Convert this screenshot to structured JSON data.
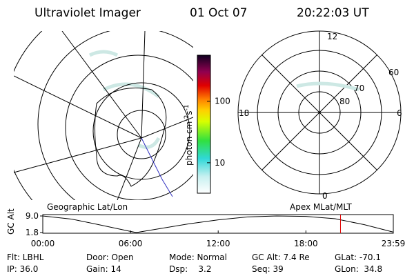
{
  "header": {
    "title": "Ultraviolet Imager",
    "date": "01 Oct 07",
    "time": "20:22:03 UT"
  },
  "colorbar": {
    "label_base": "photon cm",
    "exp1": "-2",
    "unit2": "s",
    "exp2": "-1",
    "log": true,
    "lim": [
      3.2,
      560
    ],
    "ticks": [
      10,
      100
    ]
  },
  "polar": {
    "mlt_labels": [
      "12",
      "18",
      "6",
      "0"
    ],
    "lat_labels": [
      "60",
      "70",
      "80"
    ]
  },
  "map_labels": {
    "left": "Geographic Lat/Lon",
    "right": "Apex MLat/MLT"
  },
  "altitude_plot": {
    "ylabel": "GC Alt",
    "yticks": [
      {
        "value": 9,
        "label": "9.0"
      },
      1.8
    ],
    "ylim": [
      1.8,
      9
    ],
    "xlim": [
      0,
      23.98
    ],
    "xticks": [
      {
        "value": 0,
        "label": "00:00"
      },
      {
        "value": 6,
        "label": "06:00"
      },
      {
        "value": 12,
        "label": "12:00"
      },
      {
        "value": 18,
        "label": "18:00"
      },
      {
        "value": 23.98,
        "label": "23:59"
      }
    ],
    "x": [
      0,
      2,
      4,
      6,
      6.4,
      8,
      10,
      12,
      14,
      16,
      18,
      20,
      22,
      23.98
    ],
    "values": [
      9.0,
      7.6,
      5.0,
      2.3,
      1.8,
      3.5,
      5.6,
      7.3,
      8.6,
      9.0,
      8.8,
      7.8,
      5.2,
      2.0
    ]
  },
  "footer": [
    [
      "Flt: LBHL",
      "Door: Open",
      "Mode: Normal",
      "GC Alt: 7.4 Re",
      "GLat: -70.1"
    ],
    [
      "IP: 36.0",
      "Gain: 14",
      "Dsp:    3.2",
      "Seq: 39",
      "GLon:  34.8"
    ]
  ]
}
